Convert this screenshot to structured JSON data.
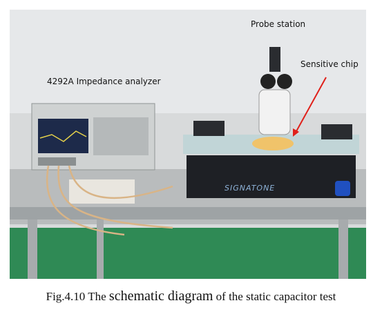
{
  "figure": {
    "labels": {
      "probe_station": "Probe station",
      "sensitive_chip": "Sensitive chip",
      "analyzer": "4292A Impedance analyzer",
      "stage_brand": "SIGNATONE"
    },
    "caption": [
      "Fig.4.10 The ",
      "schematic diagram",
      " of the static capacitor test"
    ]
  }
}
